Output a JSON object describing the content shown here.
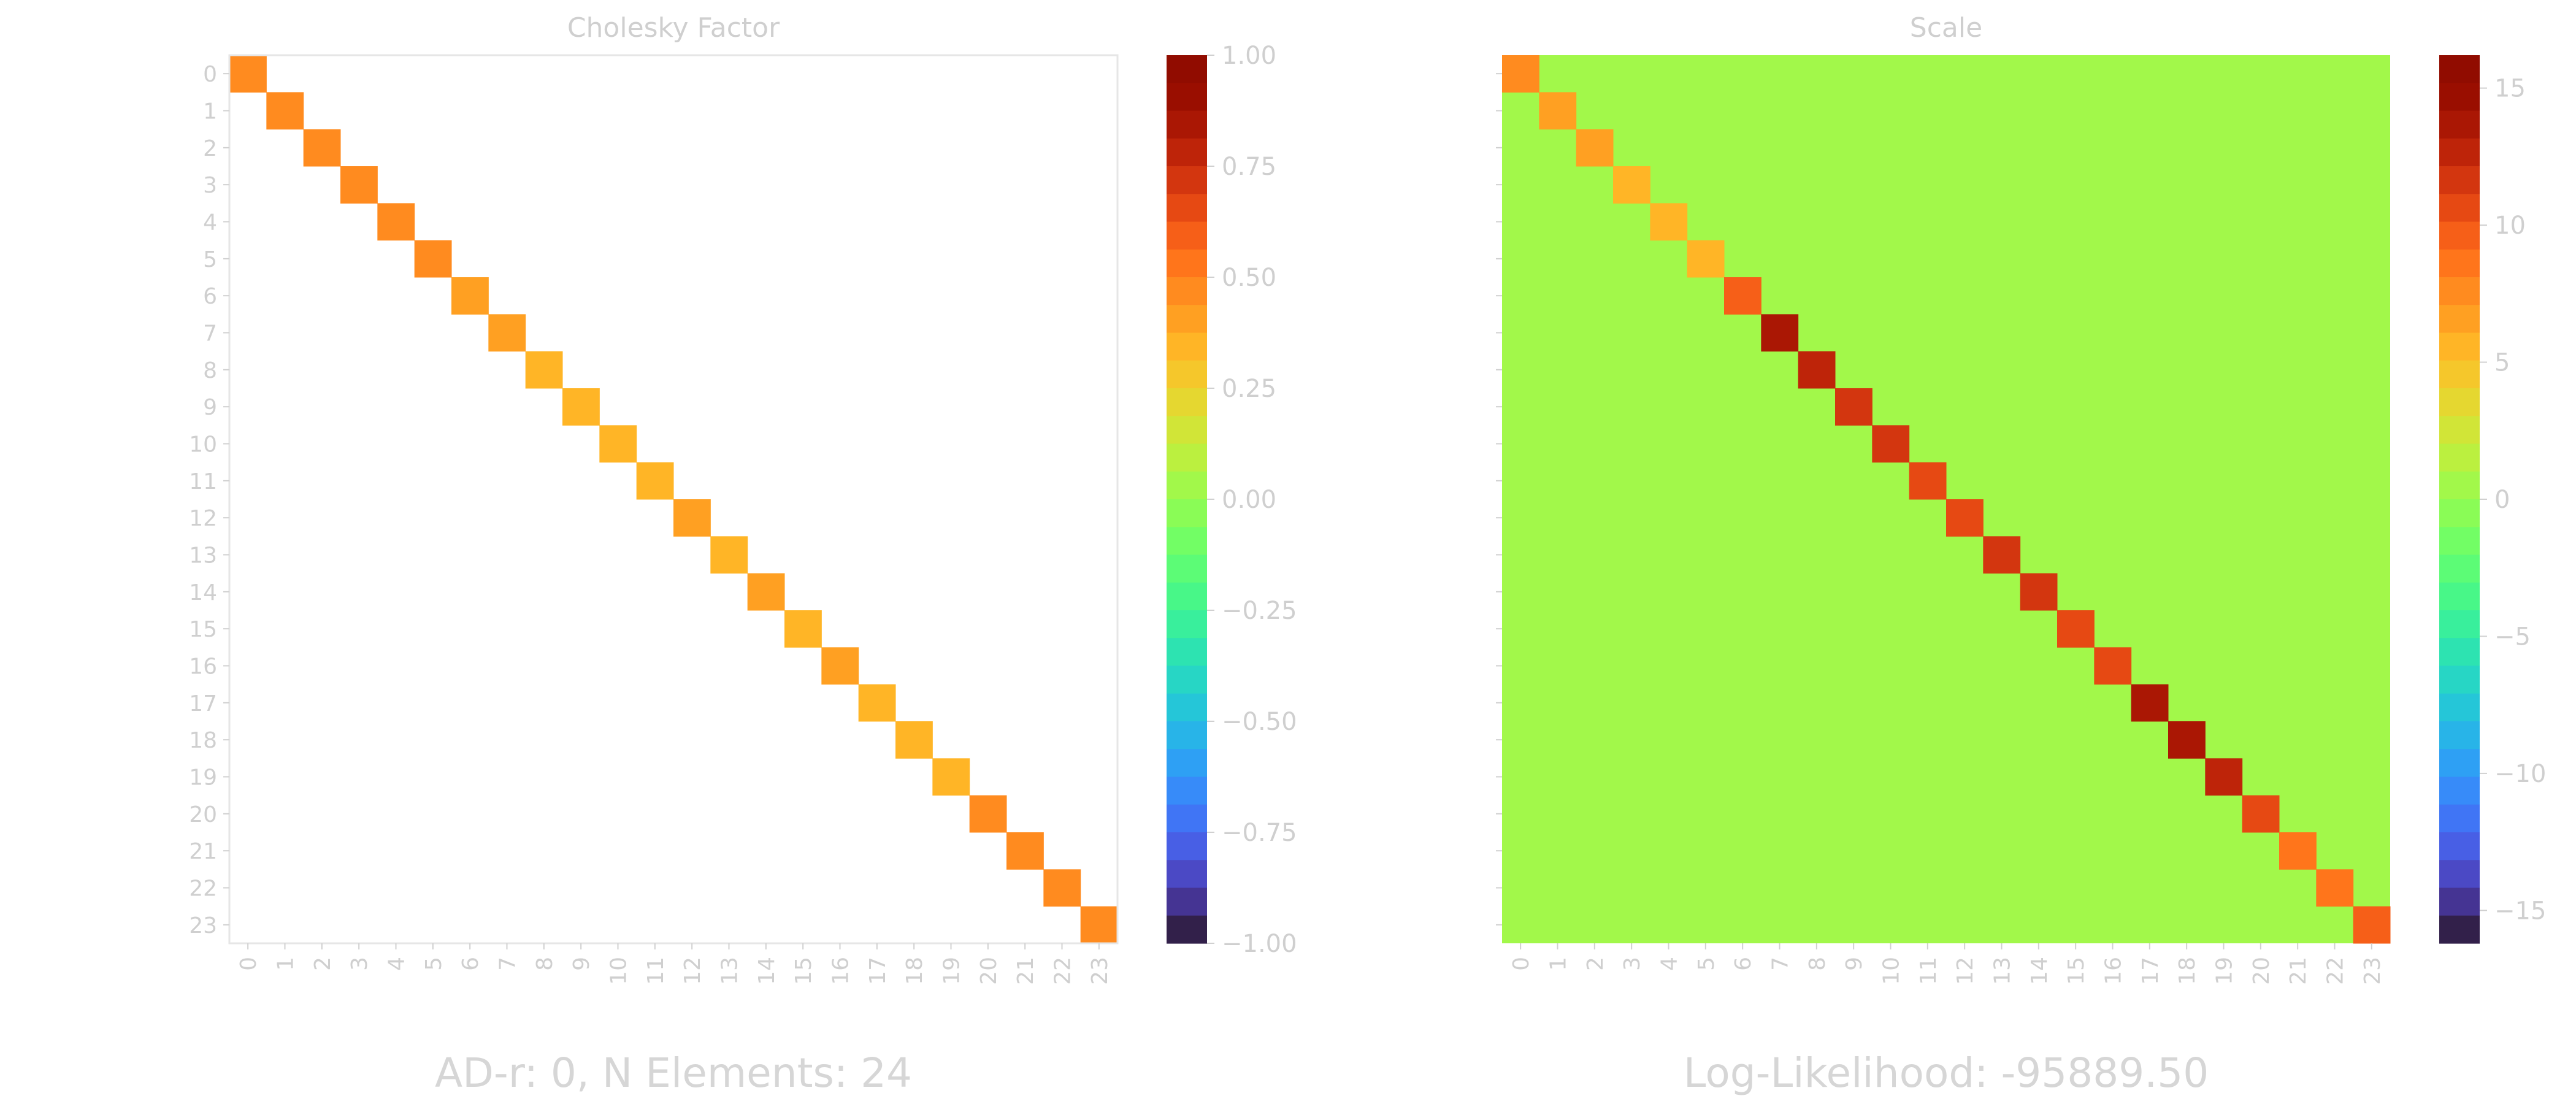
{
  "colors": {
    "left_background": "#ffffff",
    "right_background": "#a3fc3c",
    "text": "#cfcfcf"
  },
  "captions": {
    "left": "AD-r: 0, N Elements: 24",
    "right": "Log-Likelihood: -95889.50"
  },
  "chart_data": [
    {
      "type": "heatmap",
      "title": "Cholesky Factor",
      "size": 24,
      "x_ticks": [
        "0",
        "1",
        "2",
        "3",
        "4",
        "5",
        "6",
        "7",
        "8",
        "9",
        "10",
        "11",
        "12",
        "13",
        "14",
        "15",
        "16",
        "17",
        "18",
        "19",
        "20",
        "21",
        "22",
        "23"
      ],
      "y_ticks": [
        "0",
        "1",
        "2",
        "3",
        "4",
        "5",
        "6",
        "7",
        "8",
        "9",
        "10",
        "11",
        "12",
        "13",
        "14",
        "15",
        "16",
        "17",
        "18",
        "19",
        "20",
        "21",
        "22",
        "23"
      ],
      "diagonal_values": [
        0.49,
        0.48,
        0.47,
        0.45,
        0.49,
        0.48,
        0.38,
        0.38,
        0.37,
        0.37,
        0.35,
        0.37,
        0.38,
        0.37,
        0.38,
        0.37,
        0.38,
        0.37,
        0.37,
        0.37,
        0.45,
        0.45,
        0.46,
        0.48
      ],
      "off_diagonal_value": 0,
      "off_diagonal_color": "#ffffff",
      "colormap": "turbo",
      "vmin": -1.0,
      "vmax": 1.0,
      "colorbar_levels": 32,
      "colorbar_ticks": [
        "1.00",
        "0.75",
        "0.50",
        "0.25",
        "0.00",
        "−0.25",
        "−0.50",
        "−0.75",
        "−1.00"
      ],
      "colorbar_tick_values": [
        1.0,
        0.75,
        0.5,
        0.25,
        0.0,
        -0.25,
        -0.5,
        -0.75,
        -1.0
      ]
    },
    {
      "type": "heatmap",
      "title": "Scale",
      "size": 24,
      "x_ticks": [
        "0",
        "1",
        "2",
        "3",
        "4",
        "5",
        "6",
        "7",
        "8",
        "9",
        "10",
        "11",
        "12",
        "13",
        "14",
        "15",
        "16",
        "17",
        "18",
        "19",
        "20",
        "21",
        "22",
        "23"
      ],
      "diagonal_values": [
        7.4,
        6.3,
        6.1,
        5.9,
        5.7,
        5.4,
        9.5,
        13.2,
        12.8,
        11.9,
        11.5,
        11.1,
        10.9,
        11.3,
        12.1,
        10.6,
        10.2,
        13.8,
        13.4,
        12.6,
        10.4,
        9.0,
        8.6,
        9.2
      ],
      "off_diagonal_value": 0,
      "colormap": "turbo",
      "vmin": -16.2,
      "vmax": 16.2,
      "colorbar_levels": 32,
      "colorbar_ticks": [
        "15",
        "10",
        "5",
        "0",
        "−5",
        "−10",
        "−15"
      ],
      "colorbar_tick_values": [
        15,
        10,
        5,
        0,
        -5,
        -10,
        -15
      ]
    }
  ]
}
